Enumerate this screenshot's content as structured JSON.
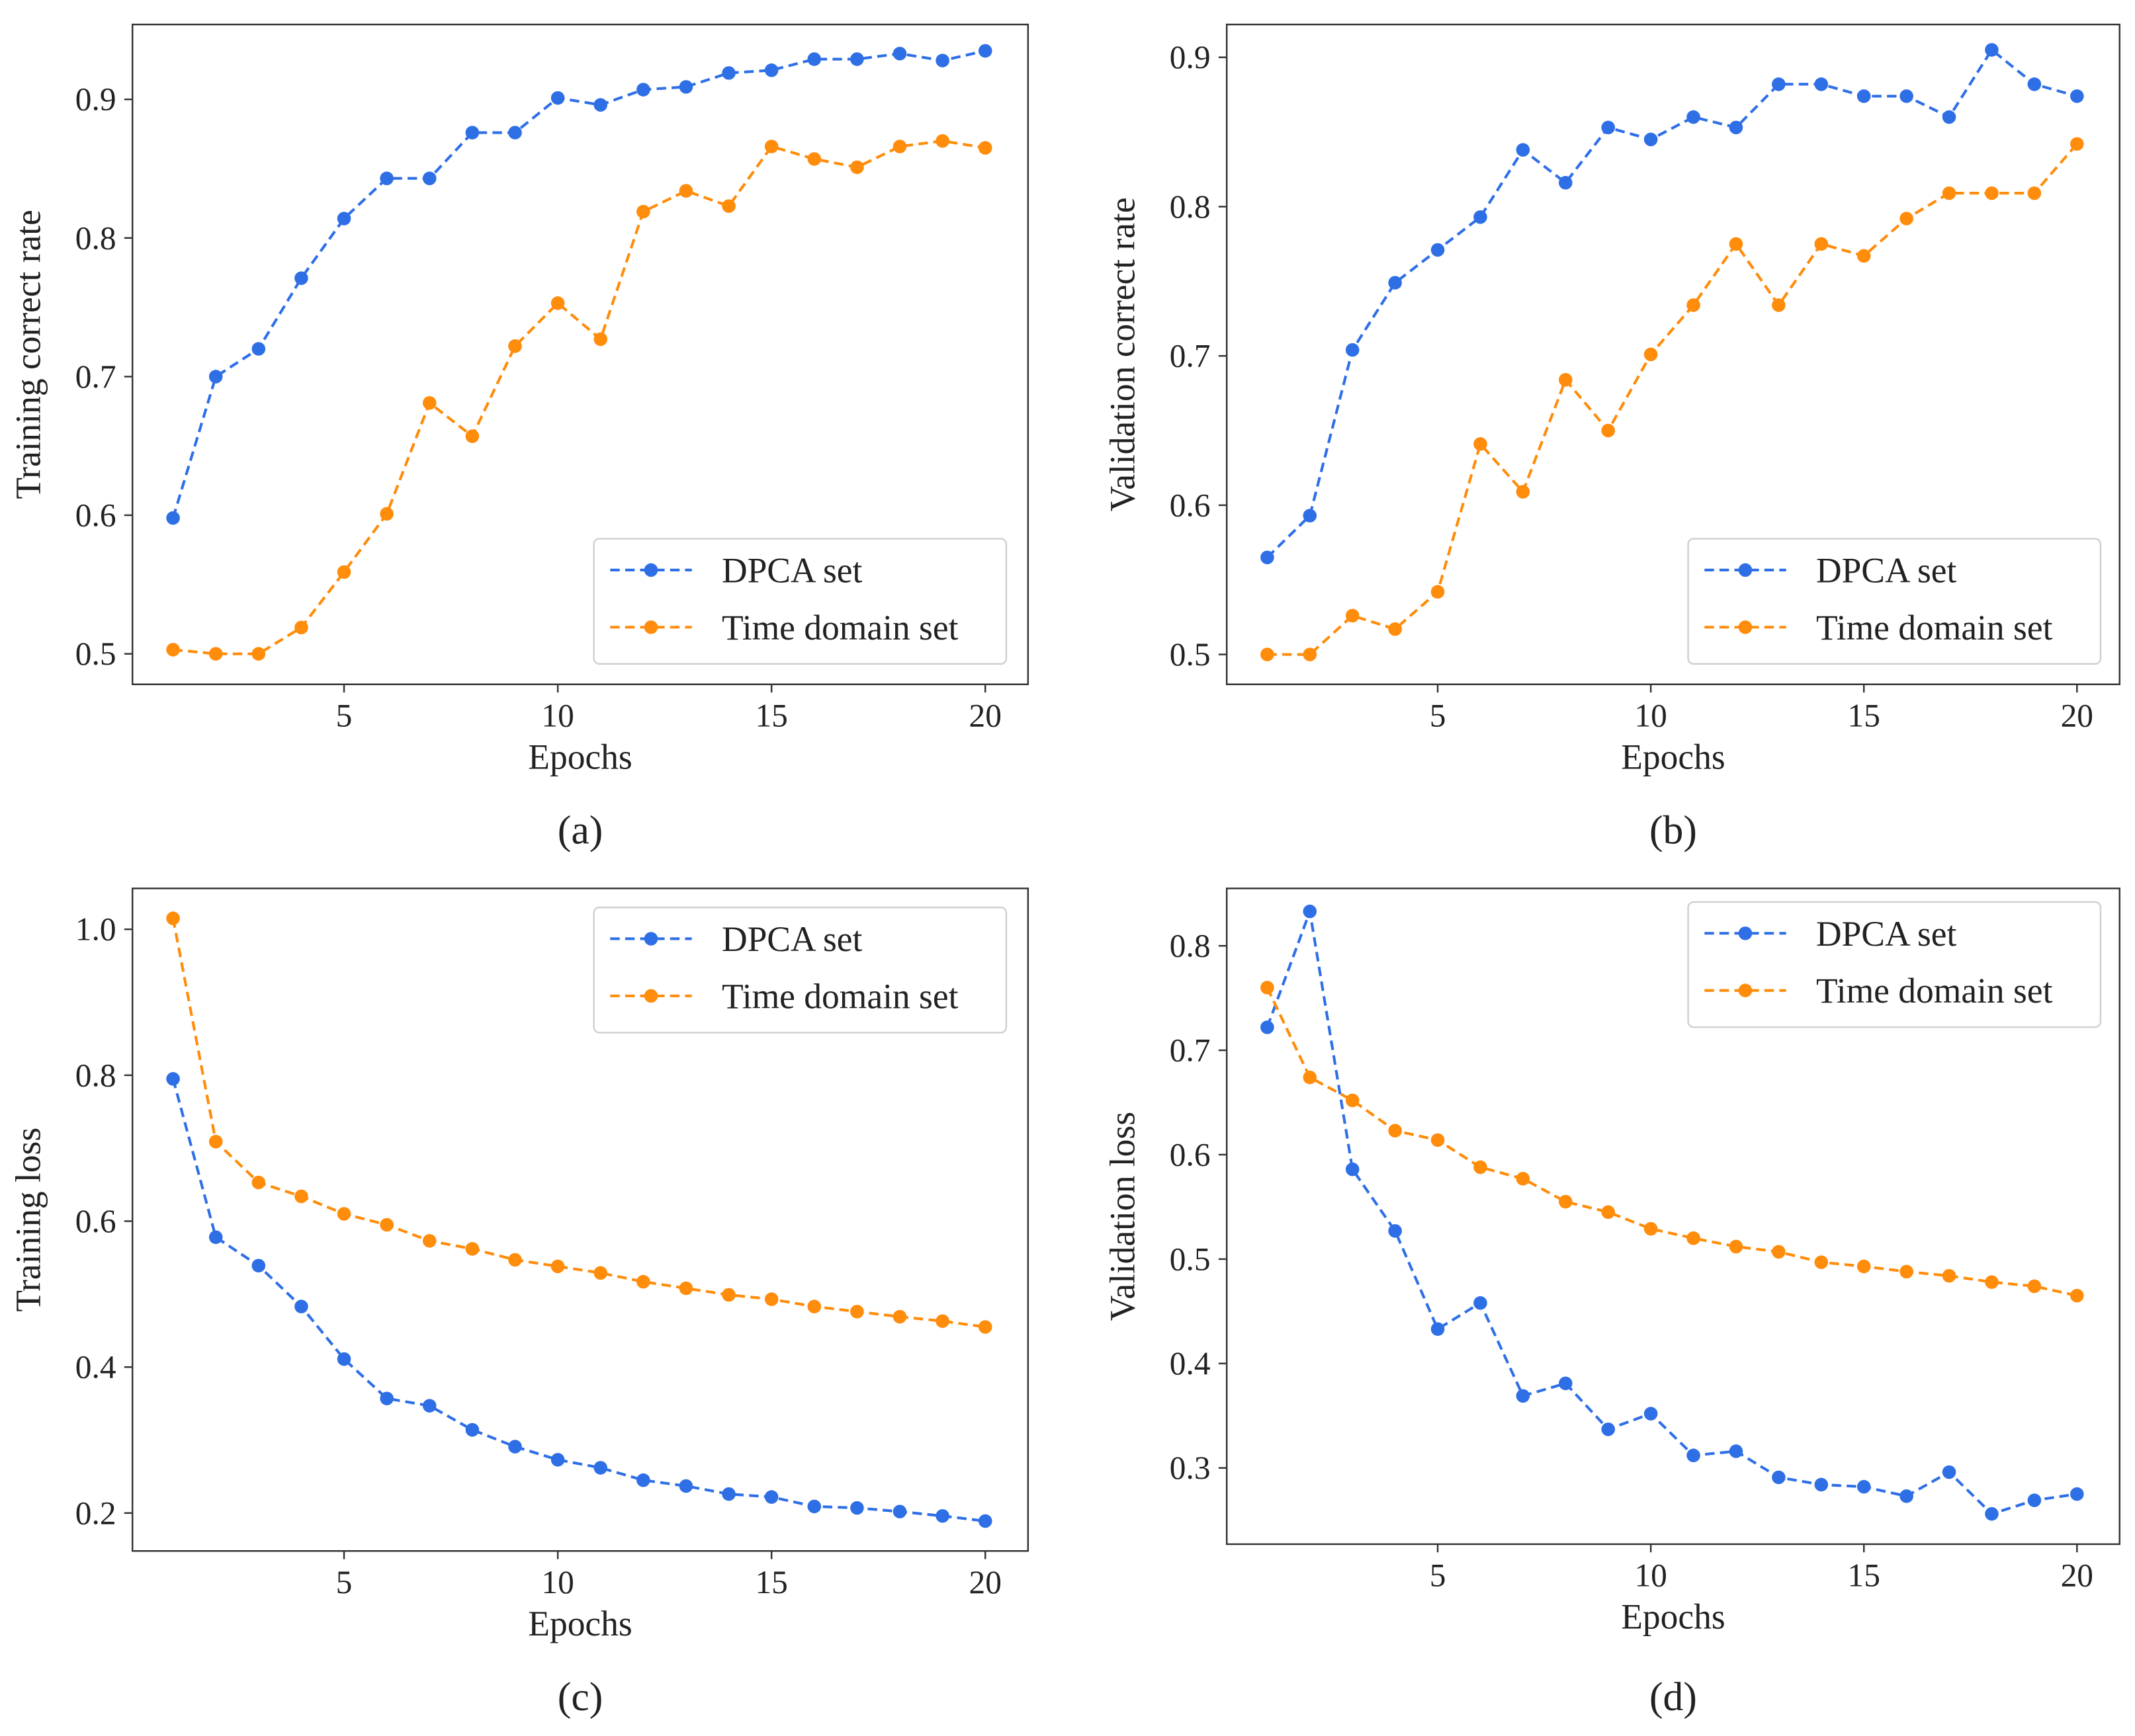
{
  "colors": {
    "dpca": "#2f6fe6",
    "time": "#ff8c0a",
    "axis": "#333333"
  },
  "chart_data": [
    {
      "type": "line",
      "caption": "(a)",
      "xlabel": "Epochs",
      "ylabel": "Training correct rate",
      "xlim": [
        0.05,
        21.0
      ],
      "ylim": [
        0.478,
        0.954
      ],
      "xticks": [
        5,
        10,
        15,
        20
      ],
      "yticks": [
        0.5,
        0.6,
        0.7,
        0.8,
        0.9
      ],
      "ytick_labels": [
        "0.5",
        "0.6",
        "0.7",
        "0.8",
        "0.9"
      ],
      "legend_position": "bottom-right",
      "grid": false,
      "x": [
        1,
        2,
        3,
        4,
        5,
        6,
        7,
        8,
        9,
        10,
        11,
        12,
        13,
        14,
        15,
        16,
        17,
        18,
        19,
        20
      ],
      "series": [
        {
          "name": "DPCA set",
          "values": [
            0.598,
            0.7,
            0.72,
            0.771,
            0.814,
            0.843,
            0.843,
            0.876,
            0.876,
            0.901,
            0.896,
            0.907,
            0.909,
            0.919,
            0.921,
            0.929,
            0.929,
            0.933,
            0.928,
            0.935
          ]
        },
        {
          "name": "Time domain set",
          "values": [
            0.503,
            0.5,
            0.5,
            0.519,
            0.559,
            0.601,
            0.681,
            0.657,
            0.722,
            0.753,
            0.727,
            0.819,
            0.834,
            0.823,
            0.866,
            0.857,
            0.851,
            0.866,
            0.87,
            0.865
          ]
        }
      ]
    },
    {
      "type": "line",
      "caption": "(b)",
      "xlabel": "Epochs",
      "ylabel": "Validation correct rate",
      "xlim": [
        0.05,
        21.0
      ],
      "ylim": [
        0.48,
        0.922
      ],
      "xticks": [
        5,
        10,
        15,
        20
      ],
      "yticks": [
        0.5,
        0.6,
        0.7,
        0.8,
        0.9
      ],
      "ytick_labels": [
        "0.5",
        "0.6",
        "0.7",
        "0.8",
        "0.9"
      ],
      "legend_position": "bottom-right",
      "grid": false,
      "x": [
        1,
        2,
        3,
        4,
        5,
        6,
        7,
        8,
        9,
        10,
        11,
        12,
        13,
        14,
        15,
        16,
        17,
        18,
        19,
        20
      ],
      "series": [
        {
          "name": "DPCA set",
          "values": [
            0.565,
            0.593,
            0.704,
            0.749,
            0.771,
            0.793,
            0.838,
            0.816,
            0.853,
            0.845,
            0.86,
            0.853,
            0.882,
            0.882,
            0.874,
            0.874,
            0.86,
            0.905,
            0.882,
            0.874
          ]
        },
        {
          "name": "Time domain set",
          "values": [
            0.5,
            0.5,
            0.526,
            0.517,
            0.542,
            0.641,
            0.609,
            0.684,
            0.65,
            0.701,
            0.734,
            0.775,
            0.734,
            0.775,
            0.767,
            0.792,
            0.809,
            0.809,
            0.809,
            0.842
          ]
        }
      ]
    },
    {
      "type": "line",
      "caption": "(c)",
      "xlabel": "Epochs",
      "ylabel": "Training loss",
      "xlim": [
        0.05,
        21.0
      ],
      "ylim": [
        0.148,
        1.056
      ],
      "xticks": [
        5,
        10,
        15,
        20
      ],
      "yticks": [
        0.2,
        0.4,
        0.6,
        0.8,
        1.0
      ],
      "ytick_labels": [
        "0.2",
        "0.4",
        "0.6",
        "0.8",
        "1.0"
      ],
      "legend_position": "top-right",
      "grid": false,
      "x": [
        1,
        2,
        3,
        4,
        5,
        6,
        7,
        8,
        9,
        10,
        11,
        12,
        13,
        14,
        15,
        16,
        17,
        18,
        19,
        20
      ],
      "series": [
        {
          "name": "DPCA set",
          "values": [
            0.795,
            0.578,
            0.539,
            0.483,
            0.411,
            0.357,
            0.347,
            0.314,
            0.291,
            0.273,
            0.262,
            0.245,
            0.237,
            0.226,
            0.222,
            0.209,
            0.207,
            0.202,
            0.196,
            0.189
          ]
        },
        {
          "name": "Time domain set",
          "values": [
            1.015,
            0.709,
            0.653,
            0.634,
            0.61,
            0.595,
            0.573,
            0.562,
            0.547,
            0.538,
            0.529,
            0.517,
            0.508,
            0.499,
            0.493,
            0.483,
            0.476,
            0.469,
            0.463,
            0.455
          ]
        }
      ]
    },
    {
      "type": "line",
      "caption": "(d)",
      "xlabel": "Epochs",
      "ylabel": "Validation loss",
      "xlim": [
        0.05,
        21.0
      ],
      "ylim": [
        0.227,
        0.855
      ],
      "xticks": [
        5,
        10,
        15,
        20
      ],
      "yticks": [
        0.3,
        0.4,
        0.5,
        0.6,
        0.7,
        0.8
      ],
      "ytick_labels": [
        "0.3",
        "0.4",
        "0.5",
        "0.6",
        "0.7",
        "0.8"
      ],
      "legend_position": "top-right",
      "grid": false,
      "x": [
        1,
        2,
        3,
        4,
        5,
        6,
        7,
        8,
        9,
        10,
        11,
        12,
        13,
        14,
        15,
        16,
        17,
        18,
        19,
        20
      ],
      "series": [
        {
          "name": "DPCA set",
          "values": [
            0.722,
            0.833,
            0.586,
            0.527,
            0.433,
            0.458,
            0.369,
            0.381,
            0.337,
            0.352,
            0.312,
            0.316,
            0.291,
            0.284,
            0.282,
            0.273,
            0.296,
            0.256,
            0.269,
            0.275
          ]
        },
        {
          "name": "Time domain set",
          "values": [
            0.76,
            0.674,
            0.652,
            0.623,
            0.614,
            0.588,
            0.577,
            0.555,
            0.545,
            0.529,
            0.52,
            0.512,
            0.507,
            0.497,
            0.493,
            0.488,
            0.484,
            0.478,
            0.474,
            0.465
          ]
        }
      ]
    }
  ]
}
